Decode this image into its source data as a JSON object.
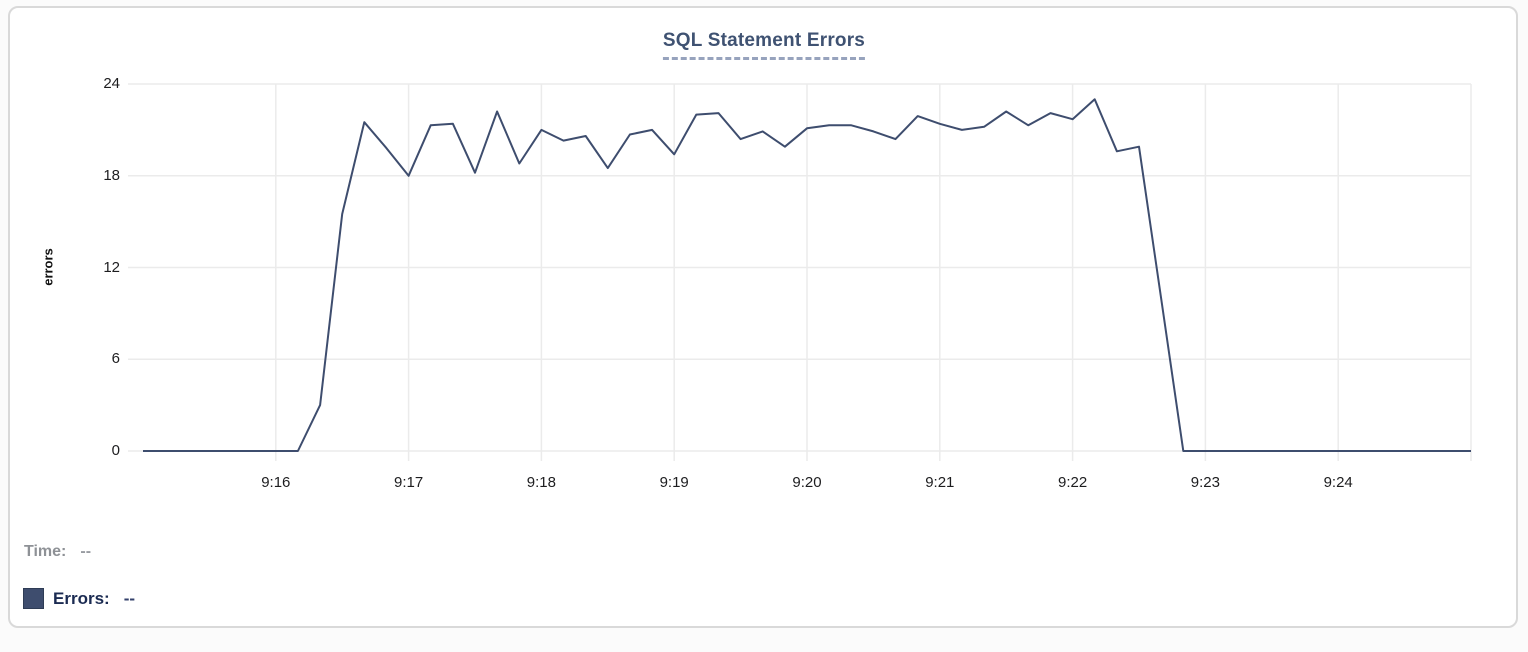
{
  "title": {
    "text": "SQL Statement Errors"
  },
  "chart_data": {
    "type": "line",
    "title": "SQL Statement Errors",
    "xlabel": "",
    "ylabel": "errors",
    "ylim": [
      0,
      24
    ],
    "yticks": [
      0,
      6,
      12,
      18,
      24
    ],
    "xtick_labels": [
      "9:16",
      "9:17",
      "9:18",
      "9:19",
      "9:20",
      "9:21",
      "9:22",
      "9:23",
      "9:24"
    ],
    "xtick_times": [
      "9:16:00",
      "9:17:00",
      "9:18:00",
      "9:19:00",
      "9:20:00",
      "9:21:00",
      "9:22:00",
      "9:23:00",
      "9:24:00"
    ],
    "grid_x_times": [
      "9:16:00",
      "9:17:00",
      "9:18:00",
      "9:19:00",
      "9:20:00",
      "9:21:00",
      "9:22:00",
      "9:23:00",
      "9:24:00",
      "9:25:00"
    ],
    "grid": true,
    "legend_position": "bottom-left",
    "x": [
      "9:15:00",
      "9:15:10",
      "9:15:20",
      "9:15:30",
      "9:15:40",
      "9:15:50",
      "9:16:00",
      "9:16:10",
      "9:16:20",
      "9:16:30",
      "9:16:40",
      "9:16:50",
      "9:17:00",
      "9:17:10",
      "9:17:20",
      "9:17:30",
      "9:17:40",
      "9:17:50",
      "9:18:00",
      "9:18:10",
      "9:18:20",
      "9:18:30",
      "9:18:40",
      "9:18:50",
      "9:19:00",
      "9:19:10",
      "9:19:20",
      "9:19:30",
      "9:19:40",
      "9:19:50",
      "9:20:00",
      "9:20:10",
      "9:20:20",
      "9:20:30",
      "9:20:40",
      "9:20:50",
      "9:21:00",
      "9:21:10",
      "9:21:20",
      "9:21:30",
      "9:21:40",
      "9:21:50",
      "9:22:00",
      "9:22:10",
      "9:22:20",
      "9:22:30",
      "9:22:40",
      "9:22:50",
      "9:23:00",
      "9:23:10",
      "9:23:20",
      "9:23:30",
      "9:23:40",
      "9:23:50",
      "9:24:00",
      "9:24:10",
      "9:24:20",
      "9:24:30",
      "9:24:40",
      "9:24:50",
      "9:25:00"
    ],
    "series": [
      {
        "name": "Errors",
        "color": "#3e4d6e",
        "values": [
          0,
          0,
          0,
          0,
          0,
          0,
          0,
          0,
          3,
          15.5,
          21.5,
          19.8,
          18,
          21.3,
          21.4,
          18.2,
          22.2,
          18.8,
          21,
          20.3,
          20.6,
          18.5,
          20.7,
          21,
          19.4,
          22,
          22.1,
          20.4,
          20.9,
          19.9,
          21.1,
          21.3,
          21.3,
          20.9,
          20.4,
          21.9,
          21.4,
          21,
          21.2,
          22.2,
          21.3,
          22.1,
          21.7,
          23,
          19.6,
          19.9,
          10,
          0,
          0,
          0,
          0,
          0,
          0,
          0,
          0,
          0,
          0,
          0,
          0,
          0,
          0
        ]
      }
    ]
  },
  "readout": {
    "time_label": "Time:",
    "time_value": "--",
    "errors_label": "Errors:",
    "errors_value": "--",
    "swatch_color": "#3e4d6e"
  },
  "colors": {
    "line": "#3e4d6e",
    "grid": "#ebebeb",
    "title": "#3f5272",
    "title_underline": "#97a3bd",
    "tick_text": "#1d1d1f",
    "time_text": "#8e9196",
    "errors_text": "#1b2b52",
    "panel_border": "#d9d9d9"
  }
}
